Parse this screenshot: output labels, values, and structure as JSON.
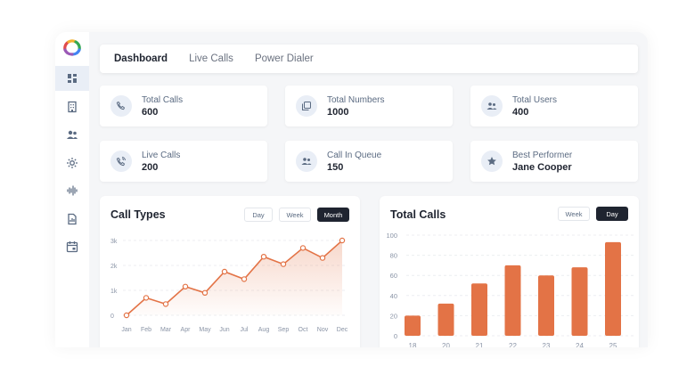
{
  "sidebar": {
    "items": [
      {
        "name": "dashboard-icon",
        "active": true
      },
      {
        "name": "building-icon",
        "active": false
      },
      {
        "name": "users-icon",
        "active": false
      },
      {
        "name": "settings-icon",
        "active": false
      },
      {
        "name": "audio-wave-icon",
        "active": false
      },
      {
        "name": "report-icon",
        "active": false
      },
      {
        "name": "calendar-icon",
        "active": false
      }
    ]
  },
  "nav": {
    "tabs": [
      {
        "label": "Dashboard",
        "active": true
      },
      {
        "label": "Live Calls",
        "active": false
      },
      {
        "label": "Power Dialer",
        "active": false
      }
    ]
  },
  "stats": [
    {
      "label": "Total Calls",
      "value": "600",
      "icon": "phone-icon"
    },
    {
      "label": "Total Numbers",
      "value": "1000",
      "icon": "numbers-icon"
    },
    {
      "label": "Total Users",
      "value": "400",
      "icon": "users-icon"
    },
    {
      "label": "Live Calls",
      "value": "200",
      "icon": "phone-ringing-icon"
    },
    {
      "label": "Call In Queue",
      "value": "150",
      "icon": "queue-icon"
    },
    {
      "label": "Best Performer",
      "value": "Jane Cooper",
      "icon": "star-icon"
    }
  ],
  "call_types": {
    "title": "Call Types",
    "ranges": [
      {
        "label": "Day",
        "active": false
      },
      {
        "label": "Week",
        "active": false
      },
      {
        "label": "Month",
        "active": true
      }
    ]
  },
  "total_calls": {
    "title": "Total Calls",
    "ranges": [
      {
        "label": "Week",
        "active": false
      },
      {
        "label": "Day",
        "active": true
      }
    ]
  },
  "colors": {
    "accent": "#e37346",
    "dark": "#1f2430",
    "icon": "#5b6b82"
  },
  "chart_data": [
    {
      "type": "area",
      "title": "Call Types",
      "x": [
        "Jan",
        "Feb",
        "Mar",
        "Apr",
        "May",
        "Jun",
        "Jul",
        "Aug",
        "Sep",
        "Oct",
        "Nov",
        "Dec"
      ],
      "values": [
        0,
        700,
        450,
        1150,
        900,
        1750,
        1450,
        2350,
        2050,
        2700,
        2300,
        3000
      ],
      "ylim": [
        0,
        3000
      ],
      "yticks": [
        0,
        1000,
        2000,
        3000
      ],
      "ytick_labels": [
        "0",
        "1k",
        "2k",
        "3k"
      ],
      "grid": true
    },
    {
      "type": "bar",
      "title": "Total Calls",
      "categories": [
        "18",
        "20",
        "21",
        "22",
        "23",
        "24",
        "25"
      ],
      "values": [
        20,
        32,
        52,
        70,
        60,
        68,
        93
      ],
      "ylim": [
        0,
        100
      ],
      "yticks": [
        0,
        20,
        40,
        60,
        80,
        100
      ],
      "grid": true
    }
  ]
}
